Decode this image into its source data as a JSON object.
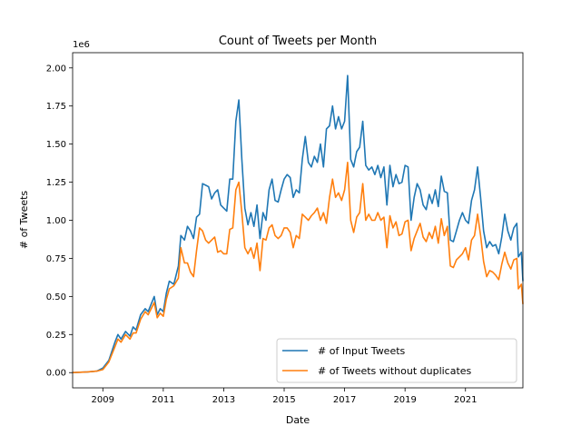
{
  "chart_data": {
    "type": "line",
    "title": "Count of Tweets per Month",
    "xlabel": "Date",
    "ylabel": "# of Tweets",
    "y_multiplier_label": "1e6",
    "xlim": [
      2008.0,
      2022.9
    ],
    "ylim": [
      -0.1,
      2.1
    ],
    "x_ticks": [
      2009,
      2011,
      2013,
      2015,
      2017,
      2019,
      2021
    ],
    "x_tick_labels": [
      "2009",
      "2011",
      "2013",
      "2015",
      "2017",
      "2019",
      "2021"
    ],
    "y_ticks": [
      0.0,
      0.25,
      0.5,
      0.75,
      1.0,
      1.25,
      1.5,
      1.75,
      2.0
    ],
    "y_tick_labels": [
      "0.00",
      "0.25",
      "0.50",
      "0.75",
      "1.00",
      "1.25",
      "1.50",
      "1.75",
      "2.00"
    ],
    "grid": false,
    "legend_position": "lower-right",
    "series": [
      {
        "name": "# of Input Tweets",
        "color": "#1f77b4",
        "points": [
          [
            2008.0,
            0.0
          ],
          [
            2008.5,
            0.005
          ],
          [
            2008.8,
            0.01
          ],
          [
            2009.0,
            0.03
          ],
          [
            2009.2,
            0.08
          ],
          [
            2009.4,
            0.2
          ],
          [
            2009.5,
            0.25
          ],
          [
            2009.6,
            0.22
          ],
          [
            2009.75,
            0.27
          ],
          [
            2009.9,
            0.24
          ],
          [
            2010.0,
            0.3
          ],
          [
            2010.1,
            0.28
          ],
          [
            2010.25,
            0.38
          ],
          [
            2010.4,
            0.42
          ],
          [
            2010.5,
            0.4
          ],
          [
            2010.7,
            0.5
          ],
          [
            2010.8,
            0.38
          ],
          [
            2010.9,
            0.42
          ],
          [
            2011.0,
            0.4
          ],
          [
            2011.1,
            0.52
          ],
          [
            2011.2,
            0.6
          ],
          [
            2011.35,
            0.58
          ],
          [
            2011.5,
            0.7
          ],
          [
            2011.58,
            0.9
          ],
          [
            2011.7,
            0.87
          ],
          [
            2011.8,
            0.96
          ],
          [
            2011.9,
            0.93
          ],
          [
            2012.0,
            0.88
          ],
          [
            2012.1,
            1.02
          ],
          [
            2012.2,
            1.04
          ],
          [
            2012.3,
            1.24
          ],
          [
            2012.4,
            1.23
          ],
          [
            2012.5,
            1.22
          ],
          [
            2012.6,
            1.14
          ],
          [
            2012.7,
            1.18
          ],
          [
            2012.8,
            1.2
          ],
          [
            2012.9,
            1.1
          ],
          [
            2013.0,
            1.08
          ],
          [
            2013.1,
            1.06
          ],
          [
            2013.2,
            1.27
          ],
          [
            2013.3,
            1.27
          ],
          [
            2013.4,
            1.65
          ],
          [
            2013.5,
            1.79
          ],
          [
            2013.6,
            1.4
          ],
          [
            2013.7,
            1.08
          ],
          [
            2013.8,
            0.97
          ],
          [
            2013.9,
            1.05
          ],
          [
            2014.0,
            0.96
          ],
          [
            2014.1,
            1.1
          ],
          [
            2014.2,
            0.88
          ],
          [
            2014.3,
            1.05
          ],
          [
            2014.4,
            1.0
          ],
          [
            2014.5,
            1.2
          ],
          [
            2014.6,
            1.27
          ],
          [
            2014.7,
            1.13
          ],
          [
            2014.8,
            1.12
          ],
          [
            2014.9,
            1.2
          ],
          [
            2015.0,
            1.27
          ],
          [
            2015.1,
            1.3
          ],
          [
            2015.2,
            1.28
          ],
          [
            2015.3,
            1.15
          ],
          [
            2015.4,
            1.2
          ],
          [
            2015.5,
            1.18
          ],
          [
            2015.6,
            1.4
          ],
          [
            2015.7,
            1.55
          ],
          [
            2015.8,
            1.38
          ],
          [
            2015.9,
            1.35
          ],
          [
            2016.0,
            1.42
          ],
          [
            2016.1,
            1.38
          ],
          [
            2016.2,
            1.5
          ],
          [
            2016.3,
            1.35
          ],
          [
            2016.4,
            1.6
          ],
          [
            2016.5,
            1.62
          ],
          [
            2016.6,
            1.75
          ],
          [
            2016.7,
            1.6
          ],
          [
            2016.8,
            1.68
          ],
          [
            2016.9,
            1.6
          ],
          [
            2017.0,
            1.65
          ],
          [
            2017.1,
            1.95
          ],
          [
            2017.2,
            1.4
          ],
          [
            2017.3,
            1.35
          ],
          [
            2017.4,
            1.45
          ],
          [
            2017.5,
            1.48
          ],
          [
            2017.6,
            1.65
          ],
          [
            2017.7,
            1.36
          ],
          [
            2017.8,
            1.33
          ],
          [
            2017.9,
            1.35
          ],
          [
            2018.0,
            1.3
          ],
          [
            2018.1,
            1.36
          ],
          [
            2018.2,
            1.28
          ],
          [
            2018.3,
            1.35
          ],
          [
            2018.4,
            1.1
          ],
          [
            2018.5,
            1.36
          ],
          [
            2018.6,
            1.22
          ],
          [
            2018.7,
            1.3
          ],
          [
            2018.8,
            1.24
          ],
          [
            2018.9,
            1.25
          ],
          [
            2019.0,
            1.36
          ],
          [
            2019.1,
            1.35
          ],
          [
            2019.2,
            1.0
          ],
          [
            2019.3,
            1.15
          ],
          [
            2019.4,
            1.24
          ],
          [
            2019.5,
            1.2
          ],
          [
            2019.6,
            1.1
          ],
          [
            2019.7,
            1.07
          ],
          [
            2019.8,
            1.17
          ],
          [
            2019.9,
            1.11
          ],
          [
            2020.0,
            1.2
          ],
          [
            2020.1,
            1.09
          ],
          [
            2020.2,
            1.29
          ],
          [
            2020.3,
            1.19
          ],
          [
            2020.4,
            1.18
          ],
          [
            2020.5,
            0.87
          ],
          [
            2020.6,
            0.86
          ],
          [
            2020.7,
            0.93
          ],
          [
            2020.8,
            1.0
          ],
          [
            2020.9,
            1.05
          ],
          [
            2021.0,
            1.0
          ],
          [
            2021.1,
            0.98
          ],
          [
            2021.2,
            1.13
          ],
          [
            2021.3,
            1.2
          ],
          [
            2021.4,
            1.35
          ],
          [
            2021.5,
            1.15
          ],
          [
            2021.6,
            0.93
          ],
          [
            2021.7,
            0.82
          ],
          [
            2021.8,
            0.86
          ],
          [
            2021.9,
            0.83
          ],
          [
            2022.0,
            0.84
          ],
          [
            2022.1,
            0.78
          ],
          [
            2022.2,
            0.89
          ],
          [
            2022.3,
            1.04
          ],
          [
            2022.4,
            0.93
          ],
          [
            2022.5,
            0.87
          ],
          [
            2022.6,
            0.95
          ],
          [
            2022.7,
            0.98
          ],
          [
            2022.75,
            0.76
          ],
          [
            2022.85,
            0.79
          ],
          [
            2022.9,
            0.6
          ]
        ]
      },
      {
        "name": "# of Tweets without duplicates",
        "color": "#ff7f0e",
        "points": [
          [
            2008.0,
            0.0
          ],
          [
            2008.5,
            0.005
          ],
          [
            2008.8,
            0.01
          ],
          [
            2009.0,
            0.02
          ],
          [
            2009.2,
            0.07
          ],
          [
            2009.4,
            0.17
          ],
          [
            2009.5,
            0.22
          ],
          [
            2009.6,
            0.2
          ],
          [
            2009.75,
            0.25
          ],
          [
            2009.9,
            0.22
          ],
          [
            2010.0,
            0.26
          ],
          [
            2010.1,
            0.26
          ],
          [
            2010.25,
            0.35
          ],
          [
            2010.4,
            0.4
          ],
          [
            2010.5,
            0.38
          ],
          [
            2010.7,
            0.46
          ],
          [
            2010.8,
            0.36
          ],
          [
            2010.9,
            0.39
          ],
          [
            2011.0,
            0.37
          ],
          [
            2011.1,
            0.48
          ],
          [
            2011.2,
            0.55
          ],
          [
            2011.35,
            0.57
          ],
          [
            2011.5,
            0.62
          ],
          [
            2011.58,
            0.82
          ],
          [
            2011.7,
            0.72
          ],
          [
            2011.8,
            0.72
          ],
          [
            2011.9,
            0.66
          ],
          [
            2012.0,
            0.63
          ],
          [
            2012.1,
            0.8
          ],
          [
            2012.2,
            0.95
          ],
          [
            2012.3,
            0.93
          ],
          [
            2012.4,
            0.87
          ],
          [
            2012.5,
            0.85
          ],
          [
            2012.6,
            0.87
          ],
          [
            2012.7,
            0.89
          ],
          [
            2012.8,
            0.79
          ],
          [
            2012.9,
            0.8
          ],
          [
            2013.0,
            0.78
          ],
          [
            2013.1,
            0.78
          ],
          [
            2013.2,
            0.94
          ],
          [
            2013.3,
            0.95
          ],
          [
            2013.4,
            1.2
          ],
          [
            2013.5,
            1.25
          ],
          [
            2013.6,
            1.05
          ],
          [
            2013.7,
            0.82
          ],
          [
            2013.8,
            0.78
          ],
          [
            2013.9,
            0.82
          ],
          [
            2014.0,
            0.75
          ],
          [
            2014.1,
            0.85
          ],
          [
            2014.2,
            0.67
          ],
          [
            2014.3,
            0.88
          ],
          [
            2014.4,
            0.87
          ],
          [
            2014.5,
            0.95
          ],
          [
            2014.6,
            0.97
          ],
          [
            2014.7,
            0.9
          ],
          [
            2014.8,
            0.88
          ],
          [
            2014.9,
            0.9
          ],
          [
            2015.0,
            0.95
          ],
          [
            2015.1,
            0.95
          ],
          [
            2015.2,
            0.92
          ],
          [
            2015.3,
            0.82
          ],
          [
            2015.4,
            0.9
          ],
          [
            2015.5,
            0.88
          ],
          [
            2015.6,
            1.04
          ],
          [
            2015.7,
            1.02
          ],
          [
            2015.8,
            1.0
          ],
          [
            2015.9,
            1.03
          ],
          [
            2016.0,
            1.05
          ],
          [
            2016.1,
            1.08
          ],
          [
            2016.2,
            1.0
          ],
          [
            2016.3,
            1.05
          ],
          [
            2016.4,
            0.98
          ],
          [
            2016.5,
            1.15
          ],
          [
            2016.6,
            1.27
          ],
          [
            2016.7,
            1.15
          ],
          [
            2016.8,
            1.18
          ],
          [
            2016.9,
            1.13
          ],
          [
            2017.0,
            1.2
          ],
          [
            2017.1,
            1.38
          ],
          [
            2017.2,
            1.0
          ],
          [
            2017.3,
            0.92
          ],
          [
            2017.4,
            1.02
          ],
          [
            2017.5,
            1.05
          ],
          [
            2017.6,
            1.24
          ],
          [
            2017.7,
            1.0
          ],
          [
            2017.8,
            1.04
          ],
          [
            2017.9,
            1.0
          ],
          [
            2018.0,
            1.0
          ],
          [
            2018.1,
            1.05
          ],
          [
            2018.2,
            1.0
          ],
          [
            2018.3,
            1.02
          ],
          [
            2018.4,
            0.82
          ],
          [
            2018.5,
            1.03
          ],
          [
            2018.6,
            0.95
          ],
          [
            2018.7,
            0.99
          ],
          [
            2018.8,
            0.9
          ],
          [
            2018.9,
            0.91
          ],
          [
            2019.0,
            0.99
          ],
          [
            2019.1,
            1.0
          ],
          [
            2019.2,
            0.8
          ],
          [
            2019.3,
            0.88
          ],
          [
            2019.4,
            0.93
          ],
          [
            2019.5,
            0.98
          ],
          [
            2019.6,
            0.89
          ],
          [
            2019.7,
            0.86
          ],
          [
            2019.8,
            0.92
          ],
          [
            2019.9,
            0.88
          ],
          [
            2020.0,
            0.96
          ],
          [
            2020.1,
            0.85
          ],
          [
            2020.2,
            1.01
          ],
          [
            2020.3,
            0.9
          ],
          [
            2020.4,
            0.96
          ],
          [
            2020.5,
            0.7
          ],
          [
            2020.6,
            0.69
          ],
          [
            2020.7,
            0.74
          ],
          [
            2020.8,
            0.76
          ],
          [
            2020.9,
            0.78
          ],
          [
            2021.0,
            0.82
          ],
          [
            2021.1,
            0.74
          ],
          [
            2021.2,
            0.87
          ],
          [
            2021.3,
            0.9
          ],
          [
            2021.4,
            1.04
          ],
          [
            2021.5,
            0.9
          ],
          [
            2021.6,
            0.73
          ],
          [
            2021.7,
            0.63
          ],
          [
            2021.8,
            0.67
          ],
          [
            2021.9,
            0.66
          ],
          [
            2022.0,
            0.64
          ],
          [
            2022.1,
            0.61
          ],
          [
            2022.2,
            0.71
          ],
          [
            2022.3,
            0.79
          ],
          [
            2022.4,
            0.72
          ],
          [
            2022.5,
            0.68
          ],
          [
            2022.6,
            0.74
          ],
          [
            2022.7,
            0.75
          ],
          [
            2022.75,
            0.55
          ],
          [
            2022.85,
            0.58
          ],
          [
            2022.9,
            0.45
          ]
        ]
      }
    ]
  }
}
